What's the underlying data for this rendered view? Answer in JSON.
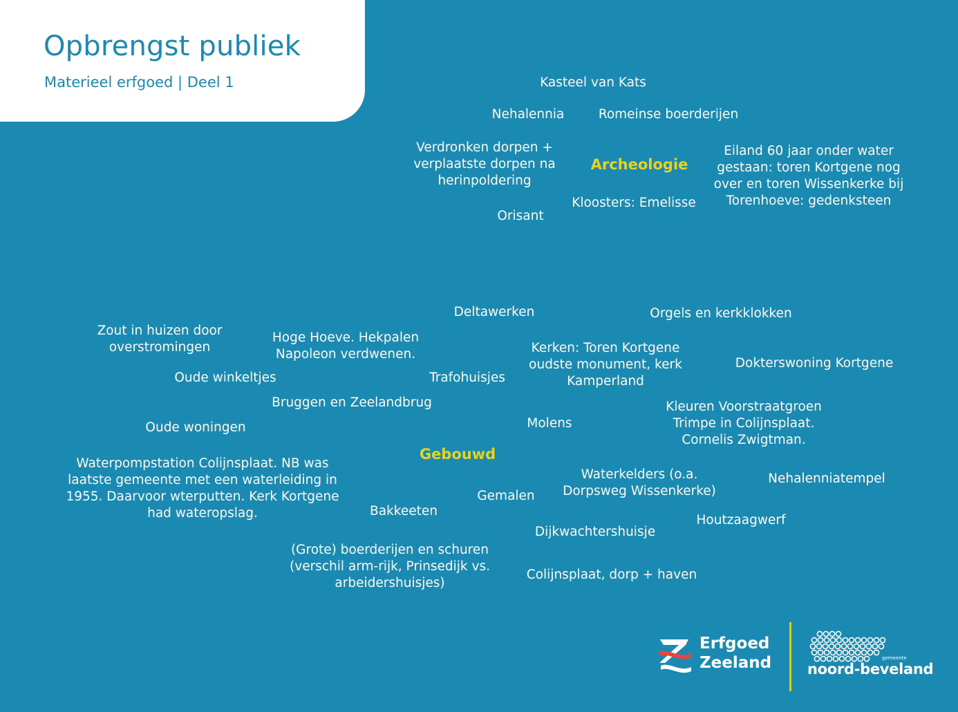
{
  "header": {
    "title": "Opbrengst publiek",
    "subtitle": "Materieel erfgoed | Deel 1"
  },
  "archeologie": {
    "category": "Archeologie",
    "items": [
      "Kasteel van Kats",
      "Nehalennia",
      "Romeinse boerderijen",
      "Verdronken dorpen +\nverplaatste dorpen na\nherinpoldering",
      "Eiland 60 jaar onder water\ngestaan: toren Kortgene nog\nover en toren Wissenkerke bij\nTorenhoeve: gedenksteen",
      "Kloosters: Emelisse",
      "Orisant"
    ]
  },
  "gebouwd": {
    "category": "Gebouwd",
    "items": [
      "Deltawerken",
      "Orgels en kerkklokken",
      "Zout in huizen door\noverstromingen",
      "Hoge Hoeve. Hekpalen\nNapoleon verdwenen.",
      "Kerken: Toren Kortgene\noudste monument, kerk\nKamperland",
      "Dokterswoning Kortgene",
      "Oude winkeltjes",
      "Trafohuisjes",
      "Bruggen en Zeelandbrug",
      "Kleuren Voorstraatgroen\nTrimpe in Colijnsplaat.\nCornelis Zwigtman.",
      "Oude woningen",
      "Molens",
      "Waterpompstation Colijnsplaat. NB was\nlaatste gemeente met een waterleiding in\n1955. Daarvoor wterputten. Kerk Kortgene\nhad wateropslag.",
      "Waterkelders (o.a.\nDorpsweg Wissenkerke)",
      "Nehalenniatempel",
      "Gemalen",
      "Bakkeeten",
      "Houtzaagwerf",
      "Dijkwachtershuisje",
      "(Grote) boerderijen en schuren\n(verschil arm-rijk, Prinsedijk vs.\narbeidershuisjes)",
      "Colijnsplaat, dorp + haven"
    ]
  },
  "logos": {
    "erfgoed": "Erfgoed\nZeeland",
    "noord_beveland_small": "gemeente",
    "noord_beveland": "noord-beveland"
  },
  "colors": {
    "background": "#1a8ab3",
    "category": "#e7d31f",
    "divider": "#c8d43a",
    "logo_red": "#e8463c"
  }
}
